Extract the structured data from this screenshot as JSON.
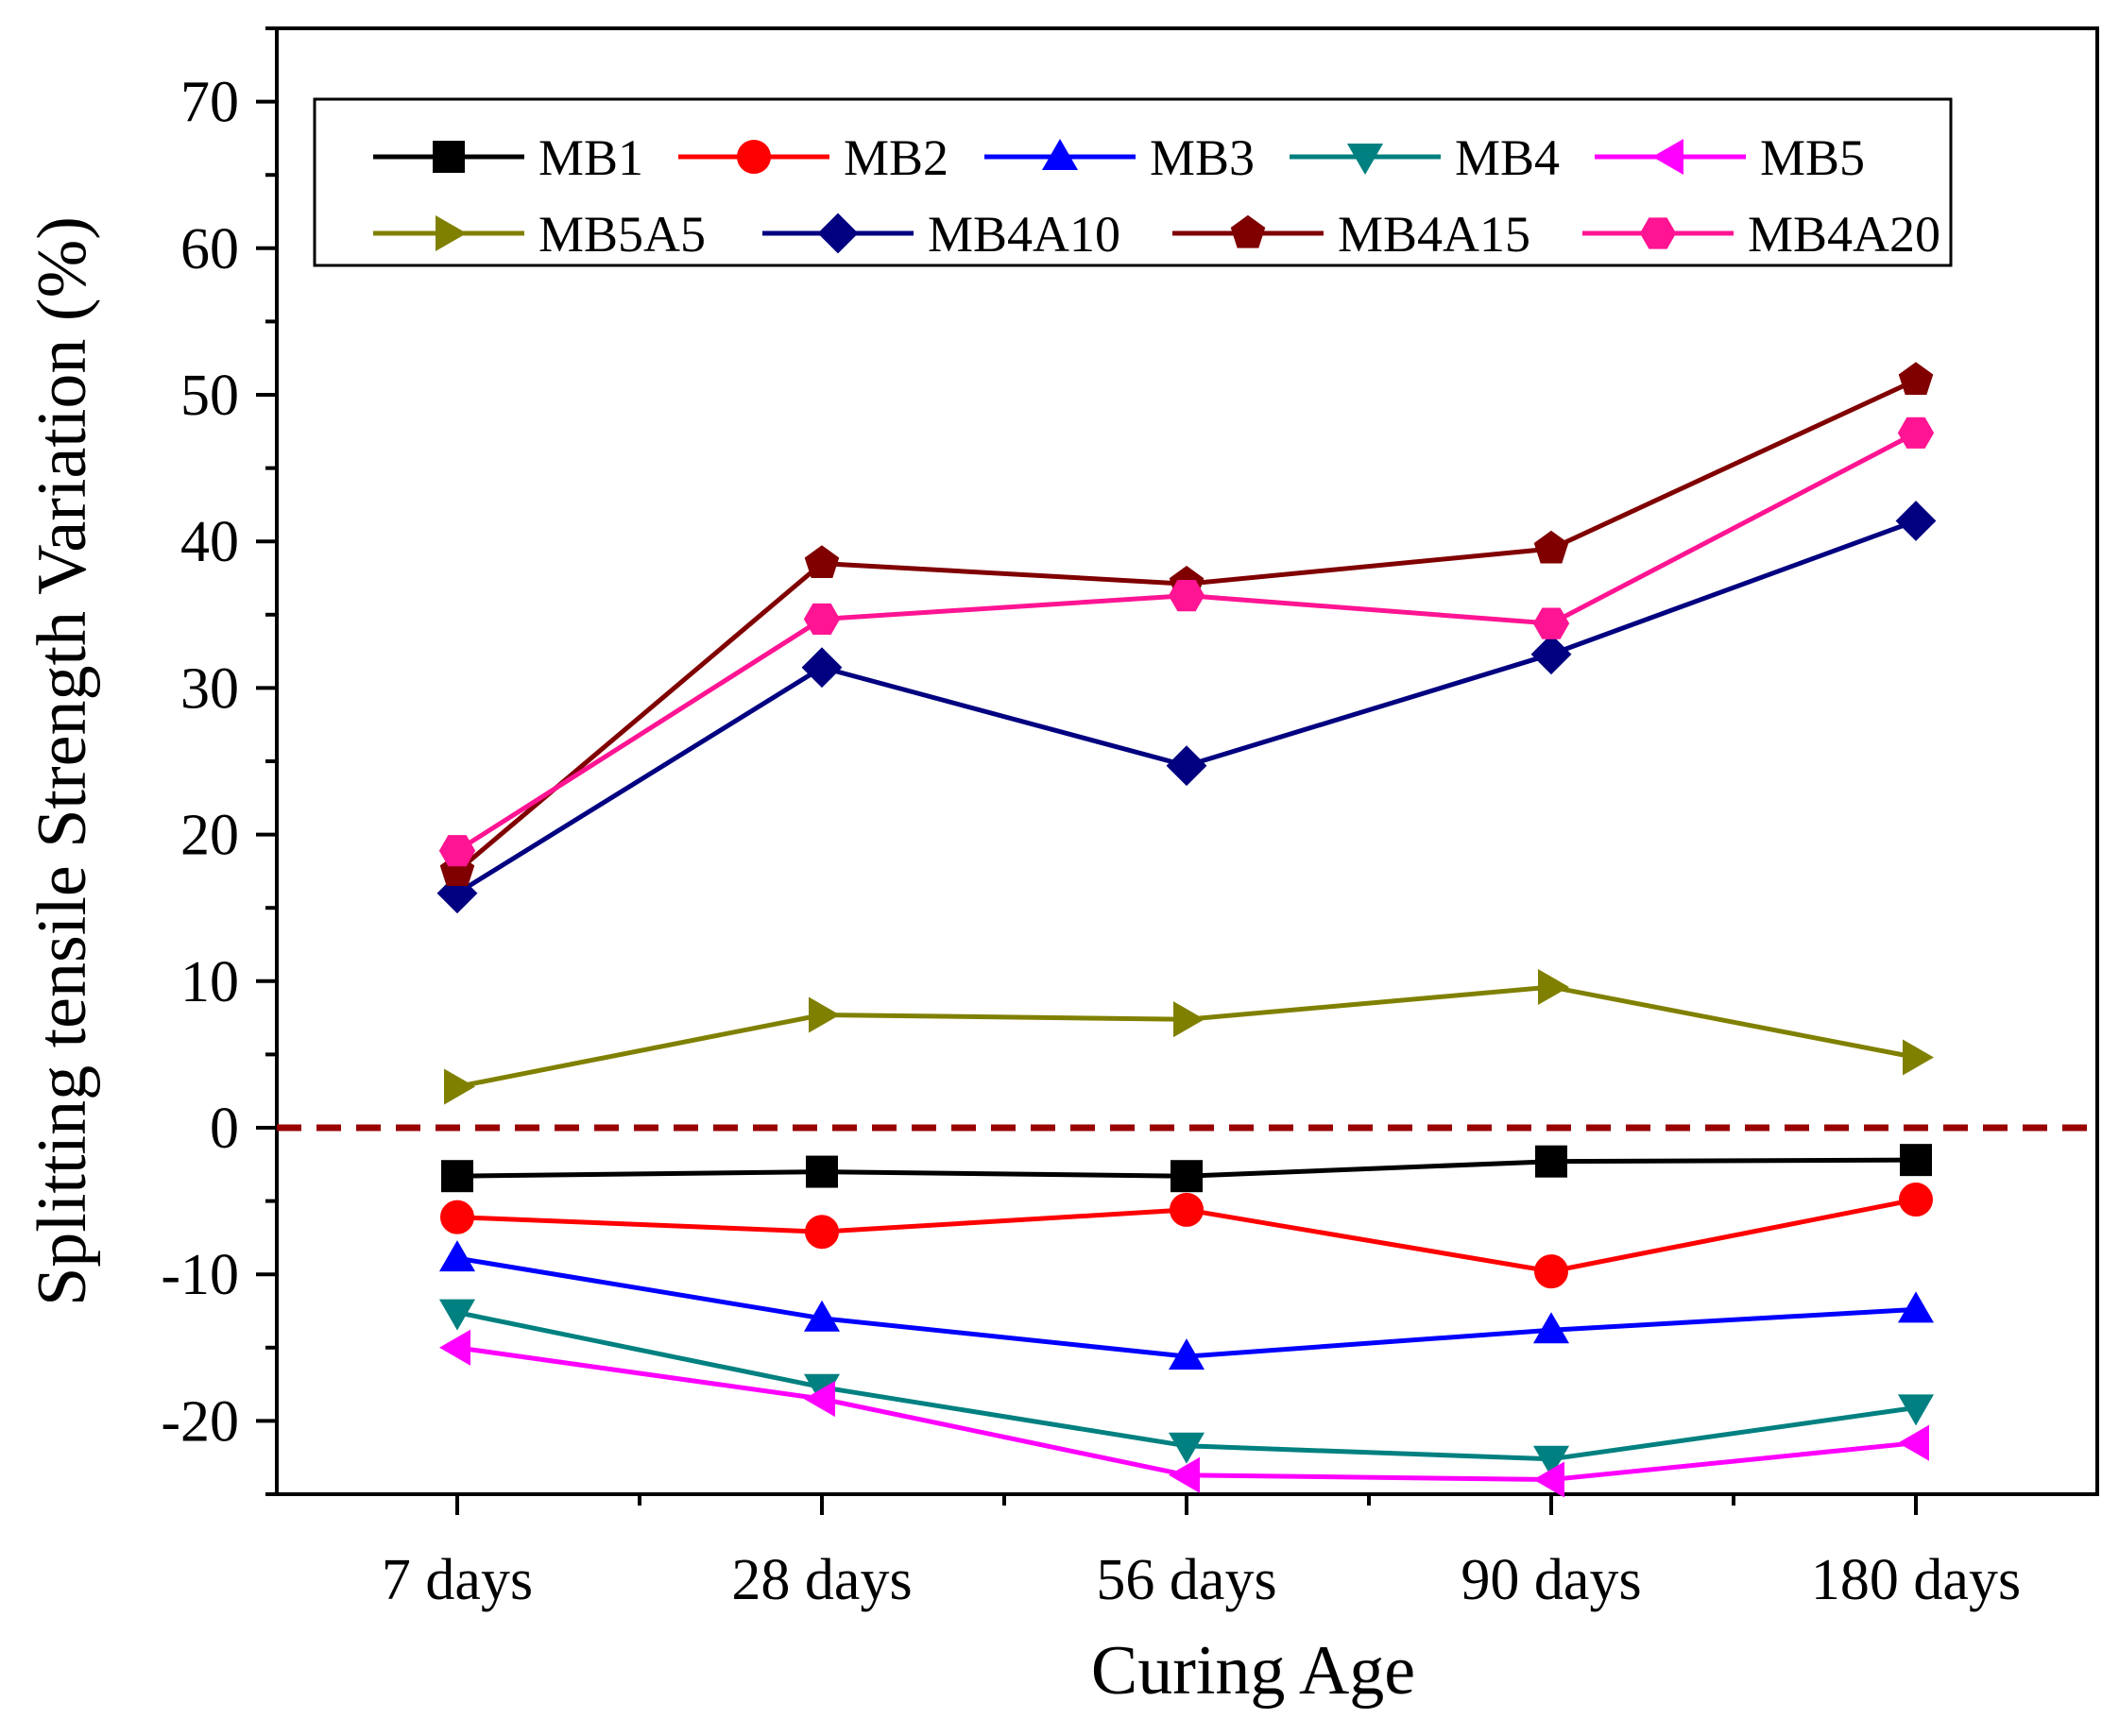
{
  "chart_data": {
    "type": "line",
    "title": "",
    "xlabel": "Curing Age",
    "ylabel": "Splitting tensile Strength Variation (%)",
    "categories": [
      "7 days",
      "28 days",
      "56 days",
      "90 days",
      "180 days"
    ],
    "ylim": [
      -25,
      75
    ],
    "yticks": [
      -20,
      -10,
      0,
      10,
      20,
      30,
      40,
      50,
      60,
      70
    ],
    "reference_line": {
      "y": 0,
      "color": "#990000",
      "style": "dashed"
    },
    "legend_position": "top",
    "series": [
      {
        "name": "MB1",
        "color": "#000000",
        "marker": "square",
        "values": [
          -3.3,
          -3.0,
          -3.3,
          -2.3,
          -2.2
        ]
      },
      {
        "name": "MB2",
        "color": "#ff0000",
        "marker": "circle",
        "values": [
          -6.1,
          -7.1,
          -5.6,
          -9.8,
          -4.9
        ]
      },
      {
        "name": "MB3",
        "color": "#0000ff",
        "marker": "triangle-up",
        "values": [
          -8.9,
          -13.0,
          -15.6,
          -13.8,
          -12.4
        ]
      },
      {
        "name": "MB4",
        "color": "#008080",
        "marker": "triangle-down",
        "values": [
          -12.6,
          -17.7,
          -21.7,
          -22.6,
          -19.1
        ]
      },
      {
        "name": "MB5",
        "color": "#ff00ff",
        "marker": "triangle-left",
        "values": [
          -15.0,
          -18.5,
          -23.7,
          -24.0,
          -21.5
        ]
      },
      {
        "name": "MB5A5",
        "color": "#808000",
        "marker": "triangle-right",
        "values": [
          2.8,
          7.7,
          7.4,
          9.6,
          4.8
        ]
      },
      {
        "name": "MB4A10",
        "color": "#000080",
        "marker": "diamond",
        "values": [
          16.0,
          31.4,
          24.7,
          32.3,
          41.4
        ]
      },
      {
        "name": "MB4A15",
        "color": "#800000",
        "marker": "pentagon",
        "values": [
          17.5,
          38.5,
          37.1,
          39.5,
          51.0
        ]
      },
      {
        "name": "MB4A20",
        "color": "#ff1493",
        "marker": "hexagon",
        "values": [
          18.9,
          34.7,
          36.3,
          34.4,
          47.4
        ]
      }
    ]
  }
}
